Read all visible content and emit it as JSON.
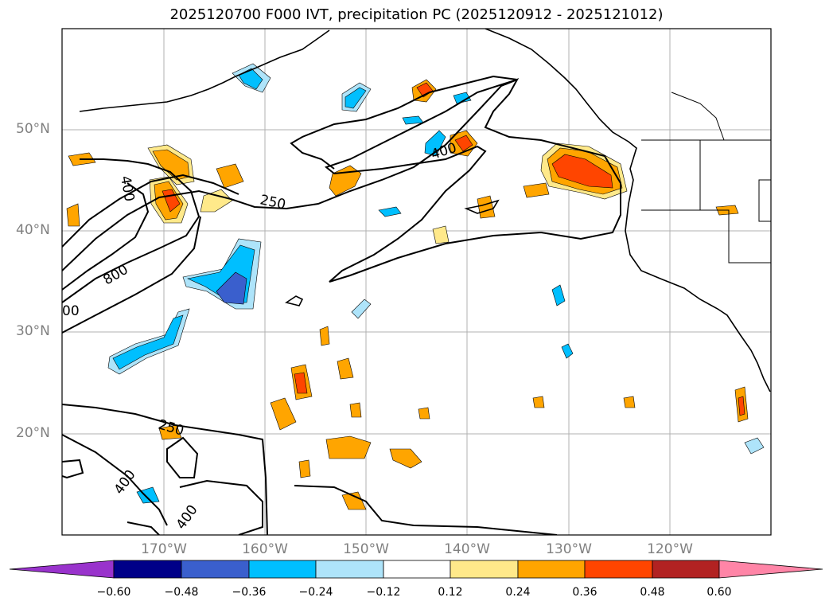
{
  "title": "2025120700 F000 IVT, precipitation PC (2025120912 - 2025121012)",
  "lat_labels": [
    "50°N",
    "40°N",
    "30°N",
    "20°N"
  ],
  "lon_labels": [
    "170°W",
    "160°W",
    "150°W",
    "140°W",
    "130°W",
    "120°W"
  ],
  "ivt_contour_labels": [
    "400",
    "250",
    "800",
    "00",
    "400",
    "250",
    "400",
    "400"
  ],
  "colorbar": {
    "ticks": [
      "−0.60",
      "−0.48",
      "−0.36",
      "−0.24",
      "−0.12",
      "0.12",
      "0.24",
      "0.36",
      "0.48",
      "0.60"
    ],
    "colors": [
      "#9933cc",
      "#000088",
      "#3a5fcd",
      "#00bfff",
      "#aee4fa",
      "#ffffff",
      "#ffe98a",
      "#ffa500",
      "#ff4500",
      "#b22222",
      "#ff85a7"
    ]
  }
}
